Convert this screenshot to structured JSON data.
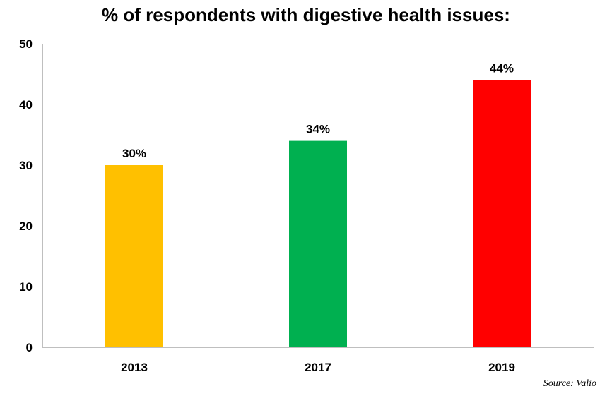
{
  "chart_data": {
    "type": "bar",
    "title": "% of respondents with digestive health issues:",
    "categories": [
      "2013",
      "2017",
      "2019"
    ],
    "values": [
      30,
      34,
      44
    ],
    "data_labels": [
      "30%",
      "34%",
      "44%"
    ],
    "colors": [
      "#FFC000",
      "#00B050",
      "#FF0000"
    ],
    "ylim": [
      0,
      50
    ],
    "yticks": [
      "0",
      "10",
      "20",
      "30",
      "40",
      "50"
    ],
    "grid": false,
    "legend": "none"
  },
  "source": "Source: Valio"
}
